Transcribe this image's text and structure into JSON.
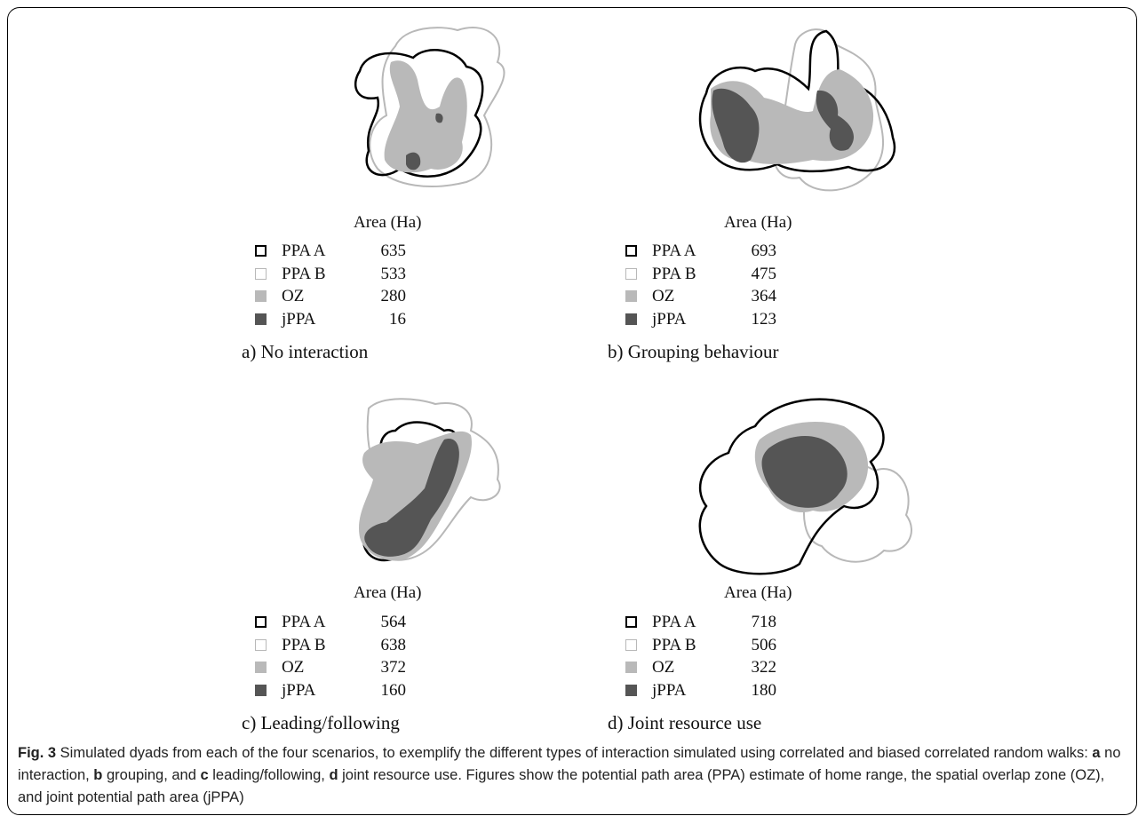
{
  "panels": [
    {
      "area_title": "Area (Ha)",
      "legend": [
        {
          "label": "PPA A",
          "value": "635"
        },
        {
          "label": "PPA B",
          "value": "533"
        },
        {
          "label": "OZ",
          "value": "280"
        },
        {
          "label": "jPPA",
          "value": "16"
        }
      ],
      "caption_letter": "a)",
      "caption_text": "No interaction"
    },
    {
      "area_title": "Area (Ha)",
      "legend": [
        {
          "label": "PPA A",
          "value": "693"
        },
        {
          "label": "PPA B",
          "value": "475"
        },
        {
          "label": "OZ",
          "value": "364"
        },
        {
          "label": "jPPA",
          "value": "123"
        }
      ],
      "caption_letter": "b)",
      "caption_text": "Grouping behaviour"
    },
    {
      "area_title": "Area (Ha)",
      "legend": [
        {
          "label": "PPA A",
          "value": "564"
        },
        {
          "label": "PPA B",
          "value": "638"
        },
        {
          "label": "OZ",
          "value": "372"
        },
        {
          "label": "jPPA",
          "value": "160"
        }
      ],
      "caption_letter": "c)",
      "caption_text": "Leading/following"
    },
    {
      "area_title": "Area (Ha)",
      "legend": [
        {
          "label": "PPA A",
          "value": "718"
        },
        {
          "label": "PPA B",
          "value": "506"
        },
        {
          "label": "OZ",
          "value": "322"
        },
        {
          "label": "jPPA",
          "value": "180"
        }
      ],
      "caption_letter": "d)",
      "caption_text": "Joint resource use"
    }
  ],
  "figure_caption": {
    "label": "Fig. 3",
    "text_1": " Simulated dyads from each of the four scenarios, to exemplify the different types of interaction simulated using correlated and biased correlated random walks: ",
    "a": "a",
    "t_a": " no interaction, ",
    "b": "b",
    "t_b": " grouping, and ",
    "c": "c",
    "t_c": " leading/following, ",
    "d": "d",
    "t_d": " joint resource use. Figures show the potential path area (PPA) estimate of home range, the spatial overlap zone (OZ), and joint potential path area (jPPA)"
  },
  "colors": {
    "ppa_a": "#000000",
    "ppa_b": "#b8b8b8",
    "oz": "#b9b9b9",
    "jppa": "#555555"
  }
}
